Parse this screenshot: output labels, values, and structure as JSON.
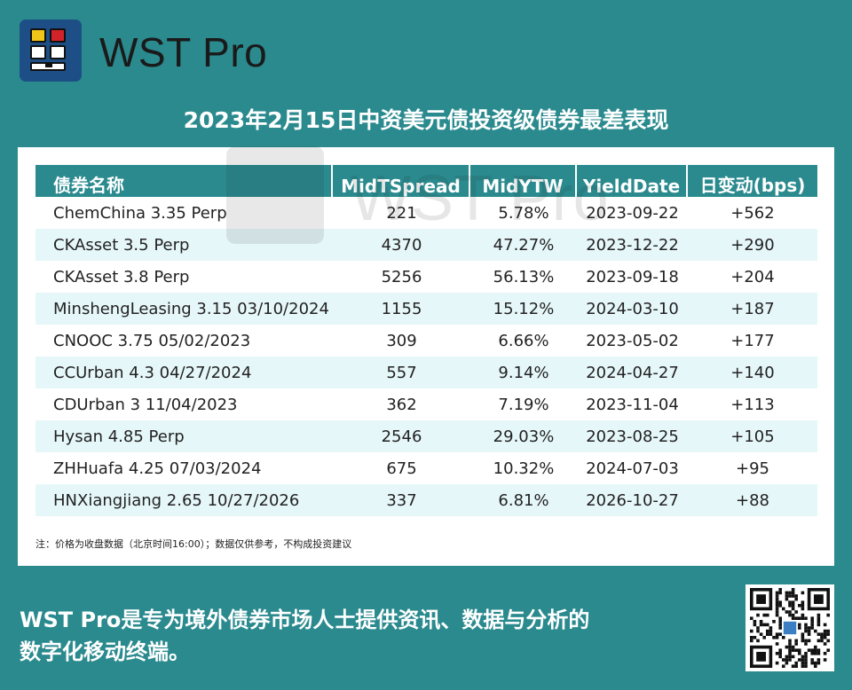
{
  "brand": {
    "name": "WST Pro"
  },
  "headline": "2023年2月15日中资美元债投资级债券最差表现",
  "table": {
    "headers": [
      "债券名称",
      "MidTSpread",
      "MidYTW",
      "YieldDate",
      "日变动(bps)"
    ],
    "rows": [
      [
        "ChemChina 3.35 Perp",
        "221",
        "5.78%",
        "2023-09-22",
        "+562"
      ],
      [
        "CKAsset 3.5 Perp",
        "4370",
        "47.27%",
        "2023-12-22",
        "+290"
      ],
      [
        "CKAsset 3.8 Perp",
        "5256",
        "56.13%",
        "2023-09-18",
        "+204"
      ],
      [
        "MinshengLeasing 3.15 03/10/2024",
        "1155",
        "15.12%",
        "2024-03-10",
        "+187"
      ],
      [
        "CNOOC 3.75 05/02/2023",
        "309",
        "6.66%",
        "2023-05-02",
        "+177"
      ],
      [
        "CCUrban 4.3 04/27/2024",
        "557",
        "9.14%",
        "2024-04-27",
        "+140"
      ],
      [
        "CDUrban 3 11/04/2023",
        "362",
        "7.19%",
        "2023-11-04",
        "+113"
      ],
      [
        "Hysan 4.85 Perp",
        "2546",
        "29.03%",
        "2023-08-25",
        "+105"
      ],
      [
        "ZHHuafa 4.25 07/03/2024",
        "675",
        "10.32%",
        "2024-07-03",
        "+95"
      ],
      [
        "HNXiangjiang 2.65 10/27/2026",
        "337",
        "6.81%",
        "2026-10-27",
        "+88"
      ]
    ]
  },
  "note": "注：价格为收盘数据（北京时间16:00）；数据仅供参考，不构成投资建议",
  "watermark": "WST Pro",
  "footer": {
    "line1": "WST Pro是专为境外债券市场人士提供资讯、数据与分析的",
    "line2": "数字化移动终端。"
  },
  "colors": {
    "background": "#2a8a8e",
    "header_fill": "#2a8a8e",
    "alt_row": "#e6f7fa",
    "logo_blue": "#1d4f86"
  },
  "icons": {
    "logo": "wst-pro-logo-icon",
    "qr": "qr-code-icon"
  }
}
